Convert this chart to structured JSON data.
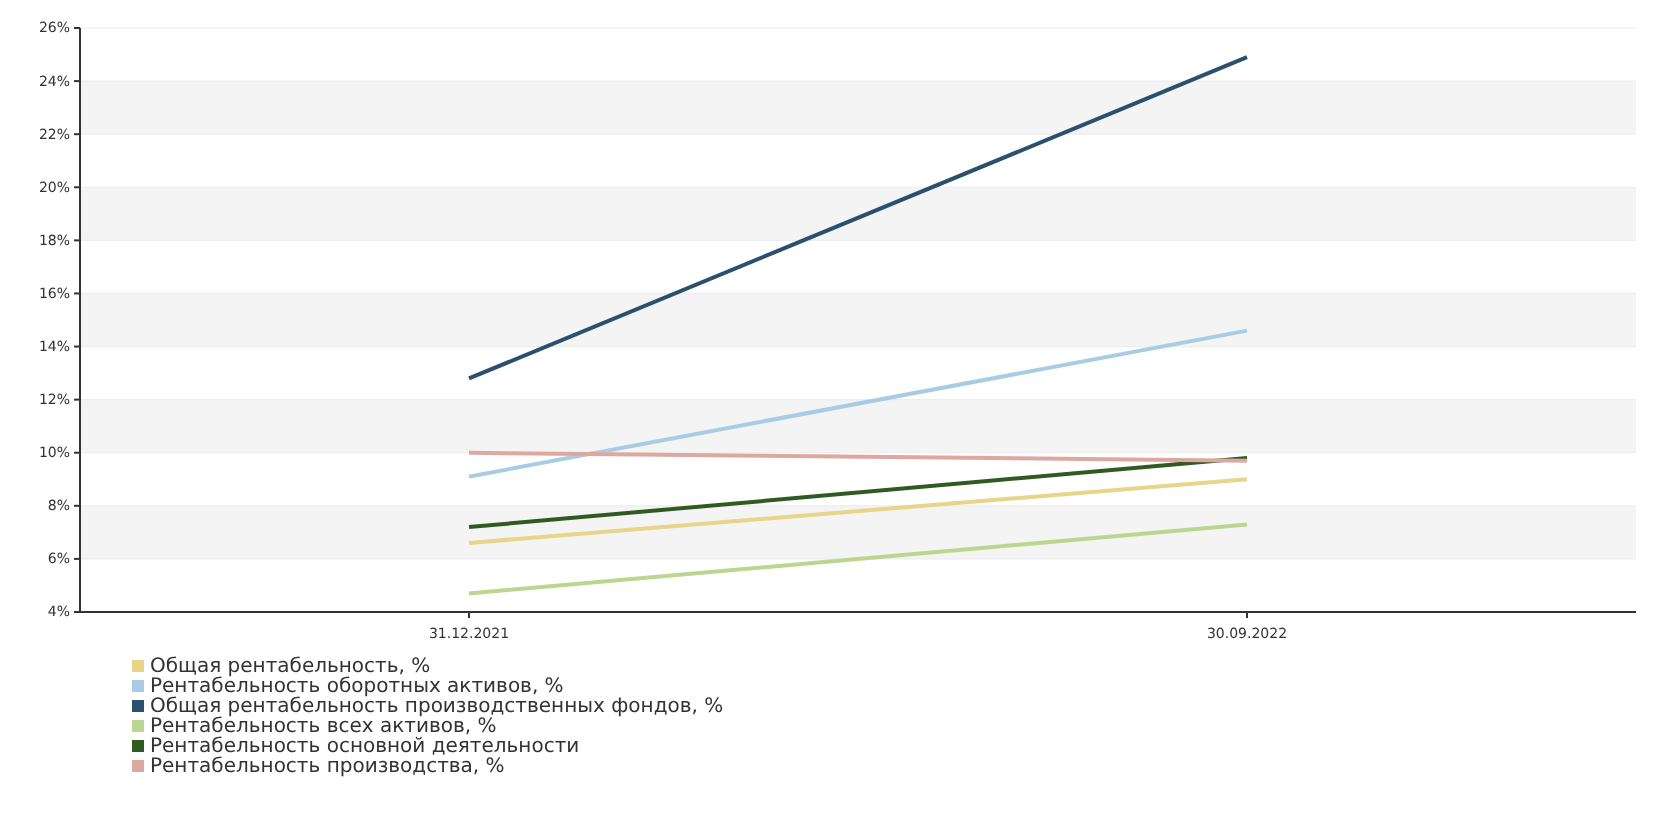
{
  "chart_data": {
    "type": "line",
    "categories": [
      "31.12.2021",
      "30.09.2022"
    ],
    "series": [
      {
        "name": "Общая рентабельность, %",
        "color": "#e8d48a",
        "values": [
          6.6,
          9.0
        ]
      },
      {
        "name": "Рентабельность оборотных активов, %",
        "color": "#a9cbe3",
        "values": [
          9.1,
          14.6
        ]
      },
      {
        "name": "Общая рентабельность производственных фондов, %",
        "color": "#2b4f6e",
        "values": [
          12.8,
          24.9
        ]
      },
      {
        "name": "Рентабельность всех активов, %",
        "color": "#b9d78f",
        "values": [
          4.7,
          7.3
        ]
      },
      {
        "name": "Рентабельность основной деятельности",
        "color": "#2f5a22",
        "values": [
          7.2,
          9.8
        ]
      },
      {
        "name": "Рентабельность производства, %",
        "color": "#dca8a0",
        "values": [
          10.0,
          9.7
        ]
      }
    ],
    "ylim": [
      4,
      26
    ],
    "yticks": [
      {
        "value": 4,
        "label": "4%"
      },
      {
        "value": 6,
        "label": "6%"
      },
      {
        "value": 8,
        "label": "8%"
      },
      {
        "value": 10,
        "label": "10%"
      },
      {
        "value": 12,
        "label": "12%"
      },
      {
        "value": 14,
        "label": "14%"
      },
      {
        "value": 16,
        "label": "16%"
      },
      {
        "value": 18,
        "label": "18%"
      },
      {
        "value": 20,
        "label": "20%"
      },
      {
        "value": 22,
        "label": "22%"
      },
      {
        "value": 24,
        "label": "24%"
      },
      {
        "value": 26,
        "label": "26%"
      }
    ],
    "grid": true,
    "legend": "bottom left",
    "marker": "none",
    "line_style": "solid"
  }
}
